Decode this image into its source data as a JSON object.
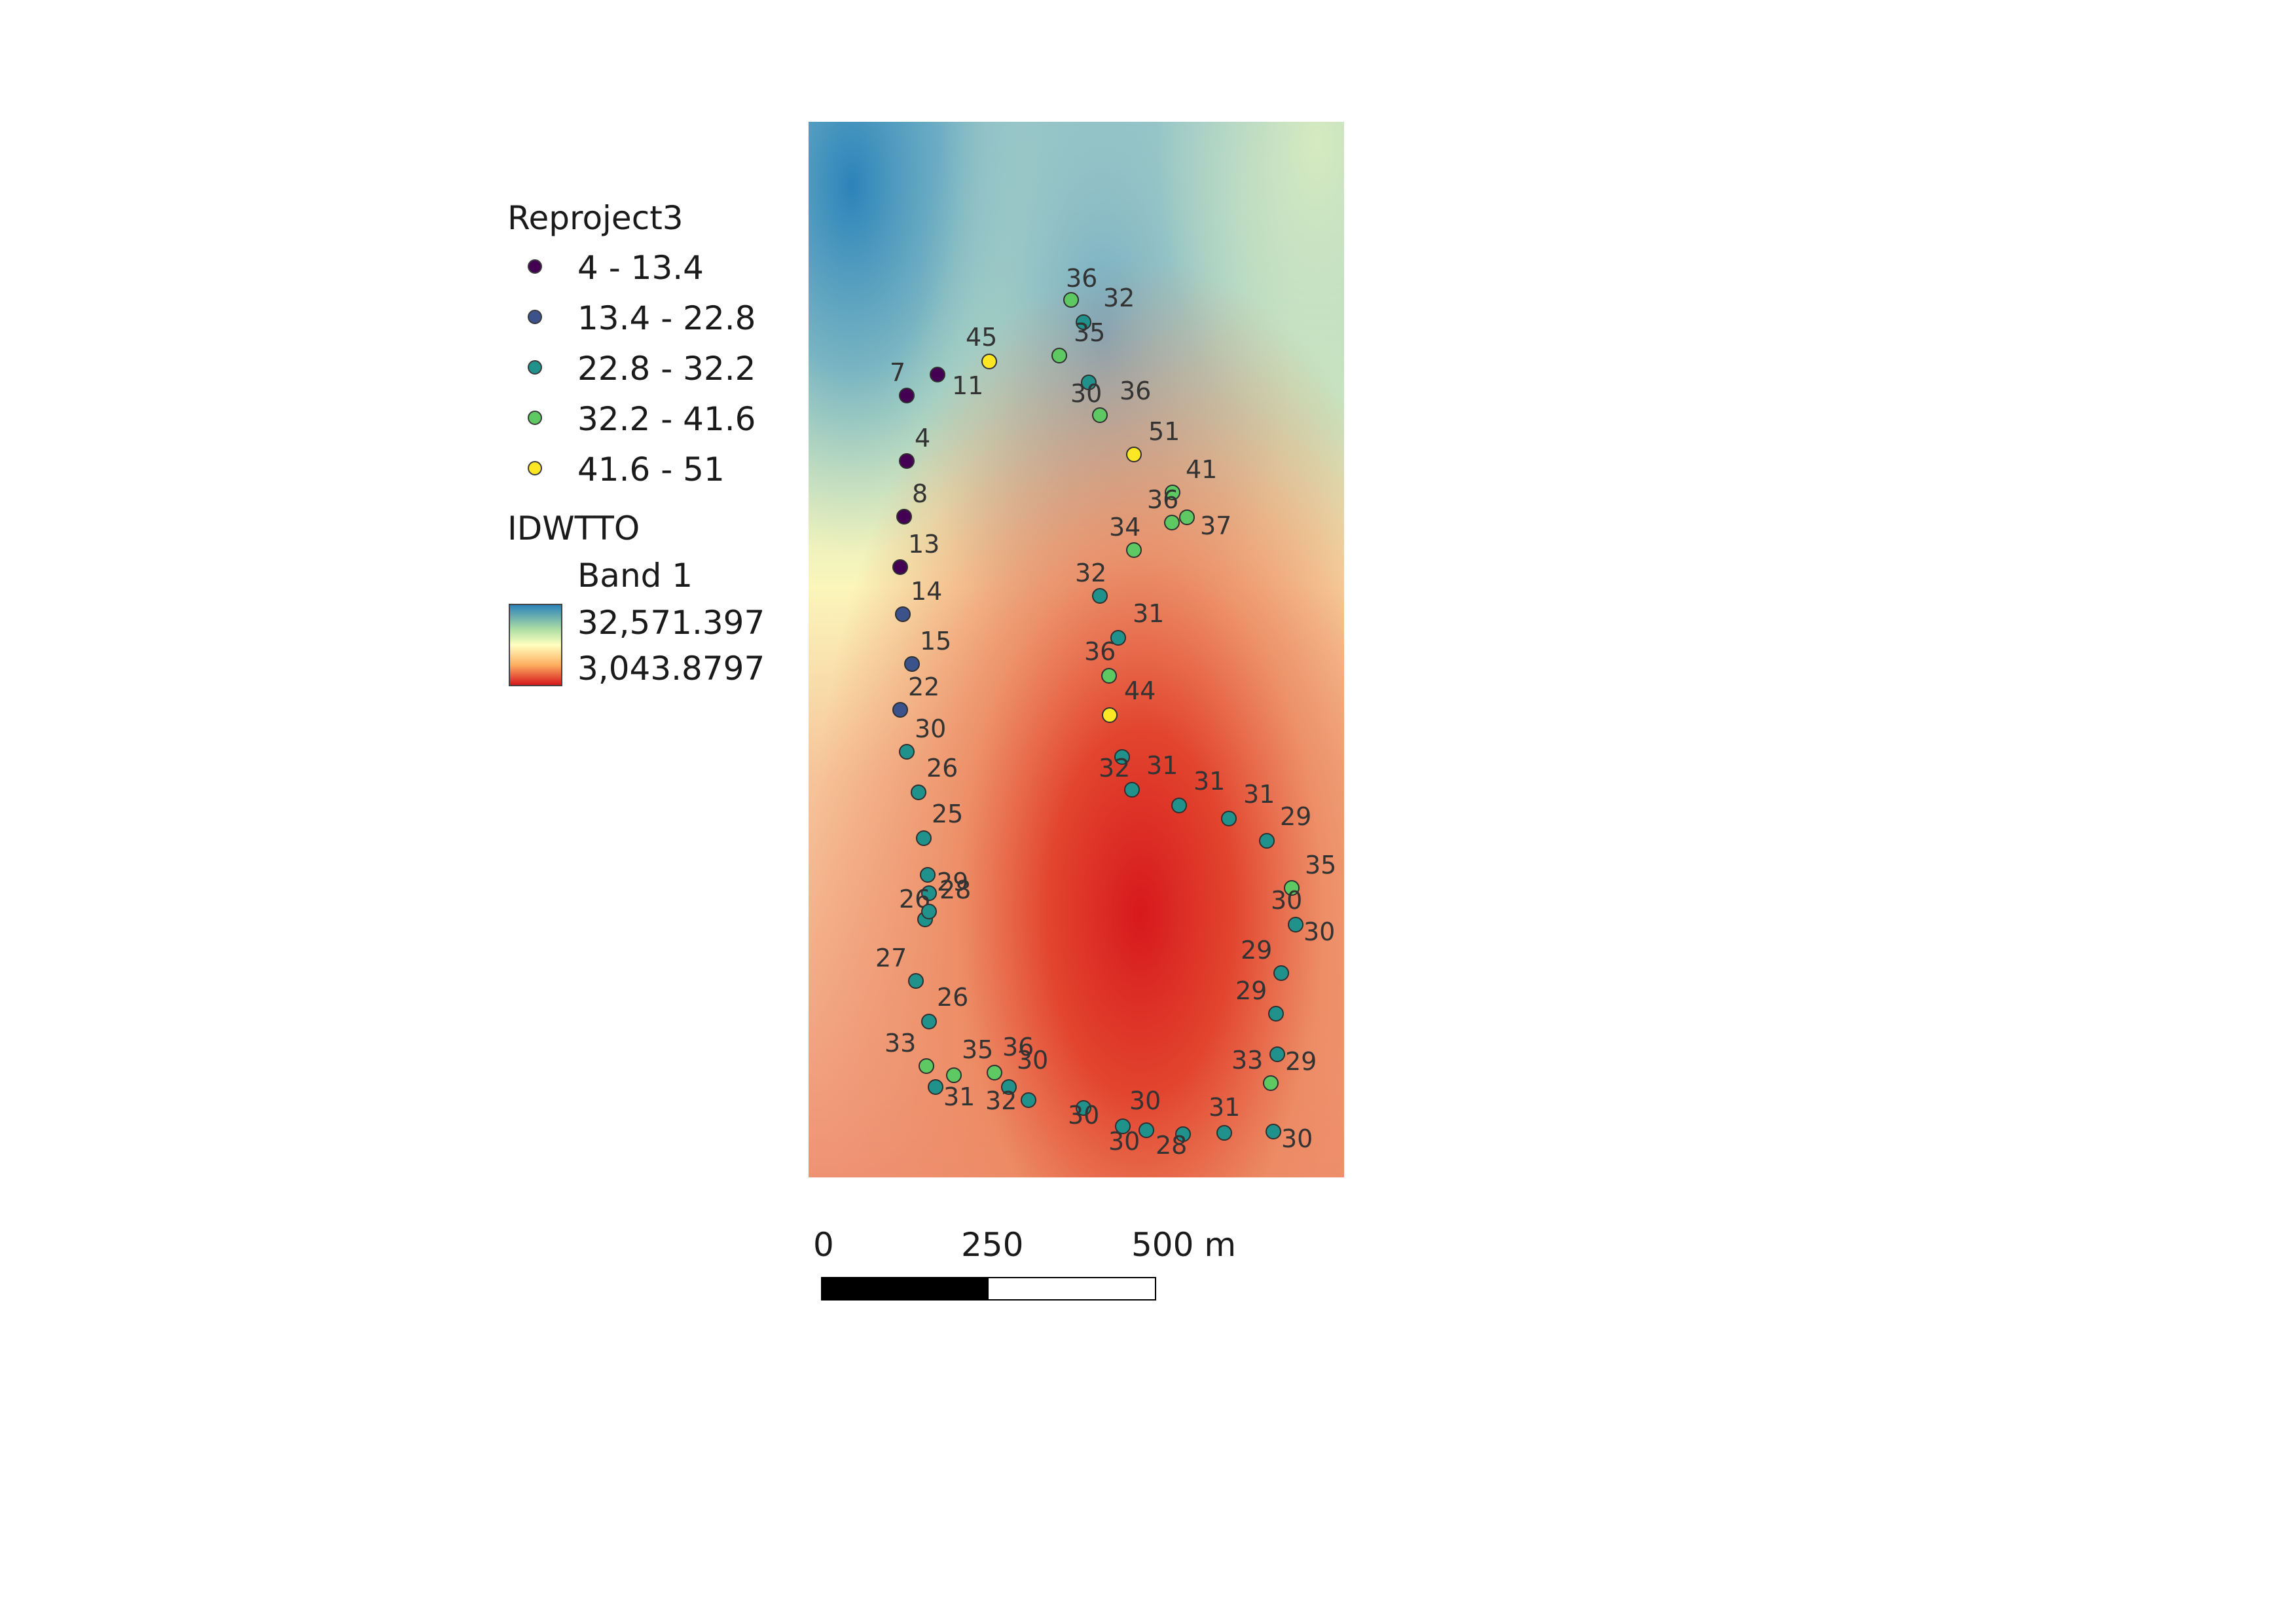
{
  "legend": {
    "points_layer_title": "Reproject3",
    "classes": [
      {
        "label": "4 - 13.4",
        "color": "#440154"
      },
      {
        "label": "13.4 - 22.8",
        "color": "#3b528b"
      },
      {
        "label": "22.8 - 32.2",
        "color": "#21918c"
      },
      {
        "label": "32.2 - 41.6",
        "color": "#5ec962"
      },
      {
        "label": "41.6 - 51",
        "color": "#fde725"
      }
    ],
    "raster_layer_title": "IDWTTO",
    "raster_band": "Band 1",
    "raster_max": "32,571.397",
    "raster_min": "3,043.8797"
  },
  "scale_bar": {
    "tick_0": "0",
    "tick_mid": "250",
    "tick_max": "500 m"
  },
  "map_points": {
    "values": [
      "36",
      "32",
      "35",
      "45",
      "11",
      "7",
      "30",
      "36",
      "4",
      "51",
      "41",
      "8",
      "36",
      "37",
      "34",
      "13",
      "32",
      "14",
      "31",
      "15",
      "36",
      "44",
      "22",
      "30",
      "32",
      "31",
      "26",
      "31",
      "31",
      "29",
      "25",
      "35",
      "29",
      "30",
      "26",
      "28",
      "30",
      "29",
      "27",
      "26",
      "29",
      "33",
      "29",
      "33",
      "35",
      "36",
      "30",
      "31",
      "32",
      "30",
      "30",
      "31",
      "30",
      "28",
      "30"
    ]
  }
}
